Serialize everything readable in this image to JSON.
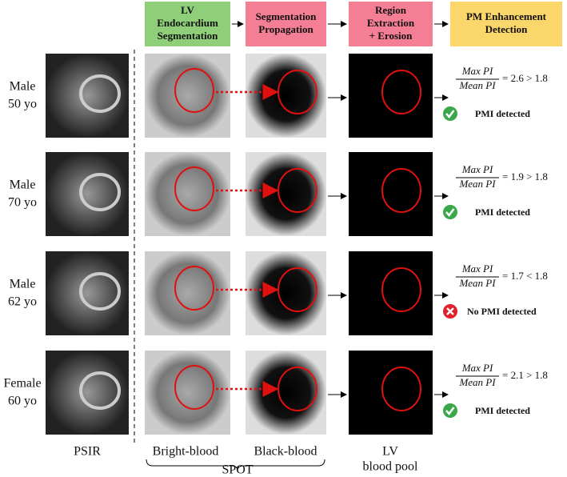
{
  "header": {
    "steps": [
      {
        "lines": [
          "LV",
          "Endocardium",
          "Segmentation"
        ],
        "color": "#8fcf7a"
      },
      {
        "lines": [
          "Segmentation",
          "Propagation"
        ],
        "color": "#f47f95"
      },
      {
        "lines": [
          "Region",
          "Extraction",
          "+ Erosion"
        ],
        "color": "#f47f95"
      },
      {
        "lines": [
          "PM Enhancement",
          "Detection"
        ],
        "color": "#fbd66a"
      }
    ]
  },
  "rows": [
    {
      "label": [
        "Male",
        "50 yo"
      ],
      "numerator": "Max PI",
      "denominator": "Mean PI",
      "comparison": "= 2.6 > 1.8",
      "result": "PMI detected",
      "detected": true
    },
    {
      "label": [
        "Male",
        "70 yo"
      ],
      "numerator": "Max PI",
      "denominator": "Mean PI",
      "comparison": "= 1.9 > 1.8",
      "result": "PMI detected",
      "detected": true
    },
    {
      "label": [
        "Male",
        "62 yo"
      ],
      "numerator": "Max PI",
      "denominator": "Mean PI",
      "comparison": "= 1.7 < 1.8",
      "result": "No PMI detected",
      "detected": false
    },
    {
      "label": [
        "Female",
        "60 yo"
      ],
      "numerator": "Max PI",
      "denominator": "Mean PI",
      "comparison": "= 2.1 > 1.8",
      "result": "PMI detected",
      "detected": true
    }
  ],
  "footer": {
    "columns": [
      [
        "PSIR"
      ],
      [
        "Bright-blood"
      ],
      [
        "Black-blood"
      ],
      [
        "LV",
        "blood pool"
      ]
    ],
    "group": "SPOT"
  }
}
